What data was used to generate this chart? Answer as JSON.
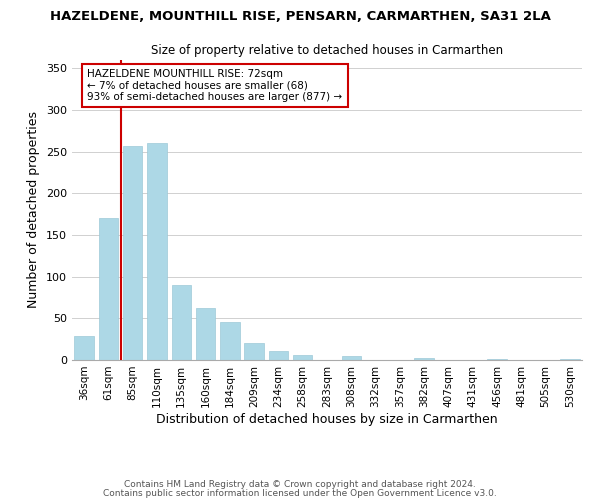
{
  "title": "HAZELDENE, MOUNTHILL RISE, PENSARN, CARMARTHEN, SA31 2LA",
  "subtitle": "Size of property relative to detached houses in Carmarthen",
  "xlabel": "Distribution of detached houses by size in Carmarthen",
  "ylabel": "Number of detached properties",
  "bar_labels": [
    "36sqm",
    "61sqm",
    "85sqm",
    "110sqm",
    "135sqm",
    "160sqm",
    "184sqm",
    "209sqm",
    "234sqm",
    "258sqm",
    "283sqm",
    "308sqm",
    "332sqm",
    "357sqm",
    "382sqm",
    "407sqm",
    "431sqm",
    "456sqm",
    "481sqm",
    "505sqm",
    "530sqm"
  ],
  "bar_values": [
    29,
    171,
    257,
    260,
    90,
    63,
    46,
    20,
    11,
    6,
    0,
    5,
    0,
    0,
    2,
    0,
    0,
    1,
    0,
    0,
    1
  ],
  "bar_color": "#add8e6",
  "bar_edge_color": "#9ec9d8",
  "vline_x": 1.5,
  "vline_color": "#cc0000",
  "annotation_text": "HAZELDENE MOUNTHILL RISE: 72sqm\n← 7% of detached houses are smaller (68)\n93% of semi-detached houses are larger (877) →",
  "annotation_box_edgecolor": "#cc0000",
  "annotation_box_facecolor": "white",
  "ylim": [
    0,
    360
  ],
  "yticks": [
    0,
    50,
    100,
    150,
    200,
    250,
    300,
    350
  ],
  "footer1": "Contains HM Land Registry data © Crown copyright and database right 2024.",
  "footer2": "Contains public sector information licensed under the Open Government Licence v3.0.",
  "background_color": "#ffffff",
  "grid_color": "#d0d0d0"
}
